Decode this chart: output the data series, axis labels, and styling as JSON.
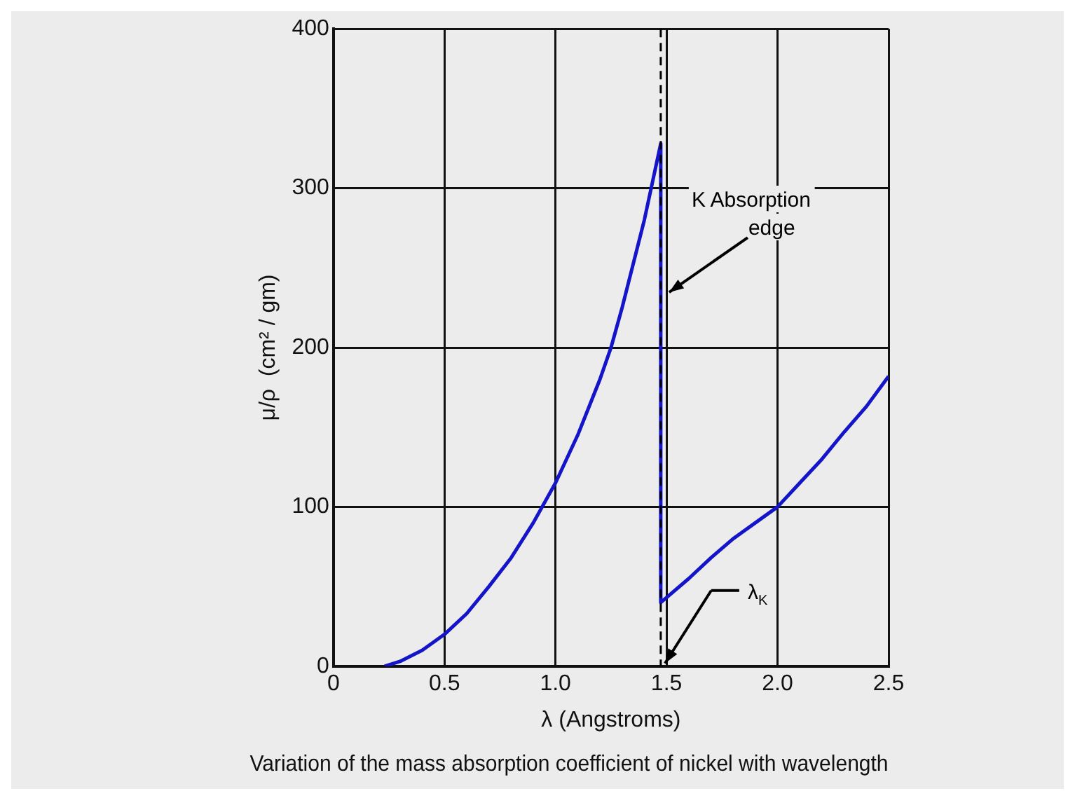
{
  "chart_data": {
    "type": "line",
    "title": "Variation of the mass absorption coefficient of nickel with wavelength",
    "xlabel": "λ (Angstroms)",
    "ylabel": "μ/ρ  (cm² / gm)",
    "series": [
      {
        "color": "#1414c8",
        "x": [
          0.23,
          0.3,
          0.4,
          0.5,
          0.6,
          0.7,
          0.8,
          0.9,
          1.0,
          1.1,
          1.2,
          1.25,
          1.3,
          1.4,
          1.474,
          1.474,
          1.6,
          1.7,
          1.8,
          1.9,
          2.0,
          2.1,
          2.2,
          2.3,
          2.4,
          2.5
        ],
        "values": [
          0,
          3,
          10,
          20,
          33,
          50,
          68,
          90,
          115,
          145,
          180,
          200,
          225,
          280,
          328,
          40,
          55,
          68,
          80,
          90,
          100,
          115,
          130,
          147,
          163,
          182
        ]
      }
    ],
    "xlim": [
      0,
      2.5
    ],
    "xticks": [
      0,
      0.5,
      {
        "value": 1,
        "label": "1.0"
      },
      1.5,
      {
        "value": 2,
        "label": "2.0"
      },
      2.5
    ],
    "ylim": [
      0,
      400
    ],
    "yticks": [
      0,
      100,
      200,
      300,
      400
    ],
    "grid": true,
    "marker": "none",
    "line_style": "solid",
    "legend": false,
    "ref_lines": [
      {
        "axis": "x",
        "value": 1.474,
        "color": "#000000",
        "line_style": "dashed"
      }
    ],
    "annotations": [
      {
        "text": "K Absorption edge",
        "x": 1.474,
        "y": 240
      },
      "λ$_{K}$"
    ]
  }
}
